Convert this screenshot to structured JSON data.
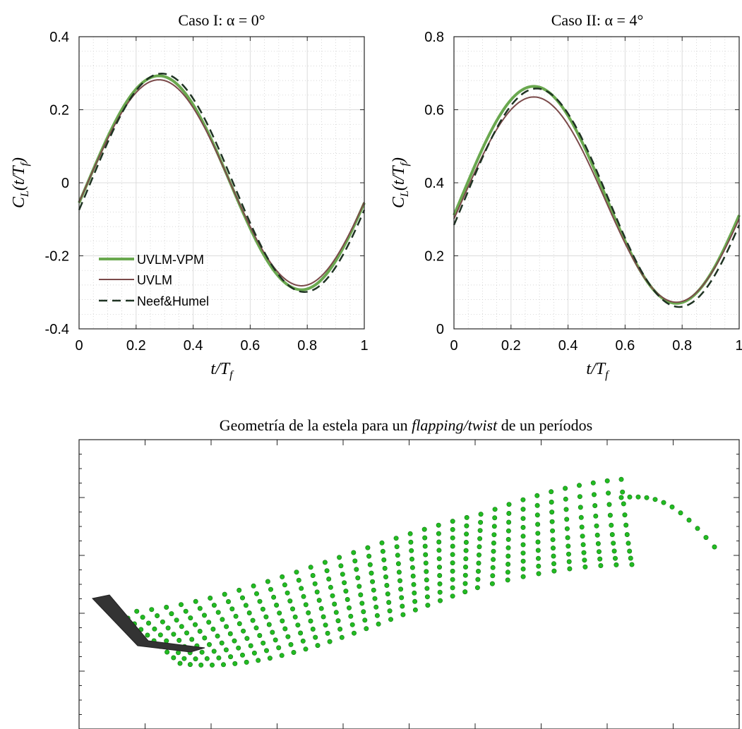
{
  "chart_data": [
    {
      "type": "line",
      "title": "Caso I: α = 0°",
      "xlabel": "t/T",
      "xlabel_sub": "f",
      "ylabel": "C",
      "ylabel_sub": "L",
      "ylabel_args": "(t/T",
      "ylabel_args_sub": "f",
      "ylabel_close": ")",
      "xlim": [
        0,
        1
      ],
      "ylim": [
        -0.4,
        0.4
      ],
      "xticks": [
        0,
        0.2,
        0.4,
        0.6,
        0.8,
        1
      ],
      "xtick_labels": [
        "0",
        "0.2",
        "0.4",
        "0.6",
        "0.8",
        "1"
      ],
      "yticks": [
        -0.4,
        -0.2,
        0,
        0.2,
        0.4
      ],
      "ytick_labels": [
        "-0.4",
        "-0.2",
        "0",
        "0.2",
        "0.4"
      ],
      "grid": true,
      "minor_grid": true,
      "legend_position": "bottom-left",
      "series": [
        {
          "name": "UVLM-VPM",
          "color": "#6aa84f",
          "style": "solid",
          "mean": 0.0,
          "amplitude": 0.293,
          "phase_peak": 0.28
        },
        {
          "name": "UVLM",
          "color": "#7b4a4a",
          "style": "solid",
          "mean": 0.0,
          "amplitude": 0.282,
          "phase_peak": 0.28
        },
        {
          "name": "Neef&Humel",
          "color": "#1f3323",
          "style": "dashed",
          "mean": 0.0,
          "amplitude": 0.299,
          "phase_peak": 0.29
        }
      ]
    },
    {
      "type": "line",
      "title": "Caso II: α = 4°",
      "xlabel": "t/T",
      "xlabel_sub": "f",
      "ylabel": "C",
      "ylabel_sub": "L",
      "ylabel_args": "(t/T",
      "ylabel_args_sub": "f",
      "ylabel_close": ")",
      "xlim": [
        0,
        1
      ],
      "ylim": [
        0,
        0.8
      ],
      "xticks": [
        0,
        0.2,
        0.4,
        0.6,
        0.8,
        1
      ],
      "xtick_labels": [
        "0",
        "0.2",
        "0.4",
        "0.6",
        "0.8",
        "1"
      ],
      "yticks": [
        0,
        0.2,
        0.4,
        0.6,
        0.8
      ],
      "ytick_labels": [
        "0",
        "0.2",
        "0.4",
        "0.6",
        "0.8"
      ],
      "grid": true,
      "minor_grid": true,
      "series": [
        {
          "name": "UVLM-VPM",
          "color": "#6aa84f",
          "style": "solid",
          "mean": 0.367,
          "amplitude": 0.297,
          "phase_peak": 0.28
        },
        {
          "name": "UVLM",
          "color": "#7b4a4a",
          "style": "solid",
          "mean": 0.354,
          "amplitude": 0.281,
          "phase_peak": 0.28
        },
        {
          "name": "Neef&Humel",
          "color": "#1f3323",
          "style": "dashed",
          "mean": 0.359,
          "amplitude": 0.299,
          "phase_peak": 0.29
        }
      ]
    },
    {
      "type": "scatter",
      "title_pre": "Geometría de la estela para un ",
      "title_italic": "flapping/twist",
      "title_post": " de un períodos",
      "wing_color": "#333333",
      "point_color": "#22bb22",
      "point_edge_color": "#117711"
    }
  ]
}
